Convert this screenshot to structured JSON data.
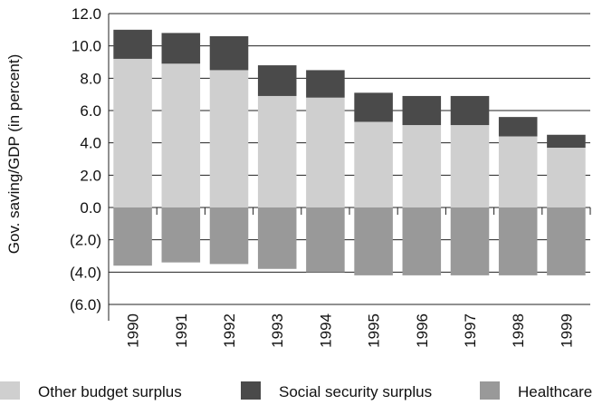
{
  "chart_data": {
    "type": "bar",
    "stacked": true,
    "categories": [
      "1990",
      "1991",
      "1992",
      "1993",
      "1994",
      "1995",
      "1996",
      "1997",
      "1998",
      "1999"
    ],
    "series": [
      {
        "name": "Other budget surplus",
        "color": "#cfcfcf",
        "values": [
          9.2,
          8.9,
          8.5,
          6.9,
          6.8,
          5.3,
          5.1,
          5.1,
          4.4,
          3.7
        ]
      },
      {
        "name": "Social security surplus",
        "color": "#4a4a4a",
        "values": [
          1.8,
          1.9,
          2.1,
          1.9,
          1.7,
          1.8,
          1.8,
          1.8,
          1.2,
          0.8
        ]
      },
      {
        "name": "Healthcare",
        "color": "#999999",
        "values": [
          -3.6,
          -3.4,
          -3.5,
          -3.8,
          -4.0,
          -4.2,
          -4.2,
          -4.2,
          -4.2,
          -4.2
        ]
      }
    ],
    "y_ticks": [
      "12.0",
      "10.0",
      "8.0",
      "6.0",
      "4.0",
      "2.0",
      "0.0",
      "(2.0)",
      "(4.0)",
      "(6.0)"
    ],
    "y_tick_values": [
      12,
      10,
      8,
      6,
      4,
      2,
      0,
      -2,
      -4,
      -6
    ],
    "ylim": [
      -6,
      12
    ],
    "ylabel": "Gov. saving/GDP (in percent)",
    "xlabel": "",
    "title": "",
    "grid": "horizontal",
    "legend_position": "bottom"
  }
}
